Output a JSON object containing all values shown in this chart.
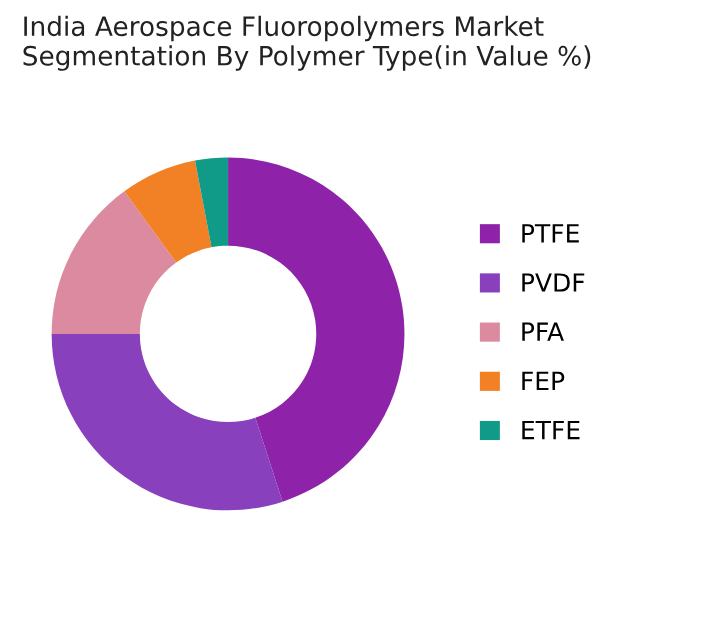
{
  "chart_data": {
    "type": "donut",
    "title": "India Aerospace Fluoropolymers Market\nSegmentation By Polymer Type(in Value %)",
    "categories": [
      "PTFE",
      "PVDF",
      "PFA",
      "FEP",
      "ETFE"
    ],
    "values": [
      45,
      30,
      15,
      7,
      3
    ],
    "colors": [
      "#8e22a8",
      "#8840bc",
      "#dc8aa0",
      "#f28024",
      "#109a88"
    ],
    "legend": "right"
  }
}
